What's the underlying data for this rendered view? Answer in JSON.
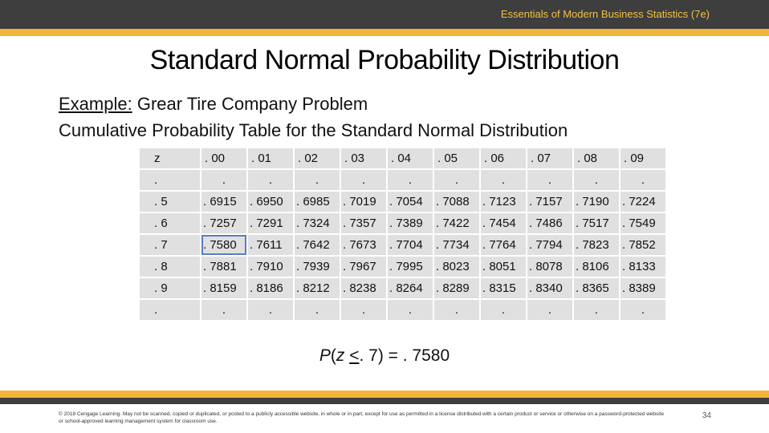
{
  "header": {
    "book_title": "Essentials of Modern Business Statistics  (7e)"
  },
  "slide": {
    "title": "Standard Normal Probability Distribution",
    "example_lead": "Example:",
    "example_text": " Grear Tire Company Problem",
    "subtitle": "Cumulative Probability Table for the Standard Normal Distribution"
  },
  "table": {
    "headers": [
      "z",
      ". 00",
      ". 01",
      ". 02",
      ". 03",
      ". 04",
      ". 05",
      ". 06",
      ". 07",
      ". 08",
      ". 09"
    ],
    "rows": [
      [
        ".",
        ".",
        ".",
        ".",
        ".",
        ".",
        ".",
        ".",
        ".",
        ".",
        "."
      ],
      [
        ". 5",
        ". 6915",
        ". 6950",
        ". 6985",
        ". 7019",
        ". 7054",
        ". 7088",
        ". 7123",
        ". 7157",
        ". 7190",
        ". 7224"
      ],
      [
        ". 6",
        ". 7257",
        ". 7291",
        ". 7324",
        ". 7357",
        ". 7389",
        ". 7422",
        ". 7454",
        ". 7486",
        ". 7517",
        ". 7549"
      ],
      [
        ". 7",
        ". 7580",
        ". 7611",
        ". 7642",
        ". 7673",
        ". 7704",
        ". 7734",
        ". 7764",
        ". 7794",
        ". 7823",
        ". 7852"
      ],
      [
        ". 8",
        ". 7881",
        ". 7910",
        ". 7939",
        ". 7967",
        ". 7995",
        ". 8023",
        ". 8051",
        ". 8078",
        ". 8106",
        ". 8133"
      ],
      [
        ". 9",
        ". 8159",
        ". 8186",
        ". 8212",
        ". 8238",
        ". 8264",
        ". 8289",
        ". 8315",
        ". 8340",
        ". 8365",
        ". 8389"
      ],
      [
        ".",
        ".",
        ".",
        ".",
        ".",
        ".",
        ".",
        ".",
        ".",
        ".",
        "."
      ]
    ],
    "highlight": {
      "row": 3,
      "col": 1,
      "color": "#5a7dbf"
    }
  },
  "formula": {
    "p_prefix": "P",
    "open": "(",
    "z": "z",
    "space": " ",
    "leq": "<",
    "rest": ". 7) = . 7580"
  },
  "footer": {
    "copyright": "© 2018 Cengage Learning. May not be scanned, copied or duplicated, or posted to a publicly accessible website, in whole or in part, except for use as permitted in a license distributed with a certain product or service or otherwise on a password-protected website or school-approved learning management system for classroom use.",
    "page_number": "34"
  },
  "colors": {
    "accent_gold": "#f2b53c",
    "dark_bar": "#3e3e3e",
    "title_gold": "#f2c245",
    "cell_bg": "#e0e0e0"
  }
}
